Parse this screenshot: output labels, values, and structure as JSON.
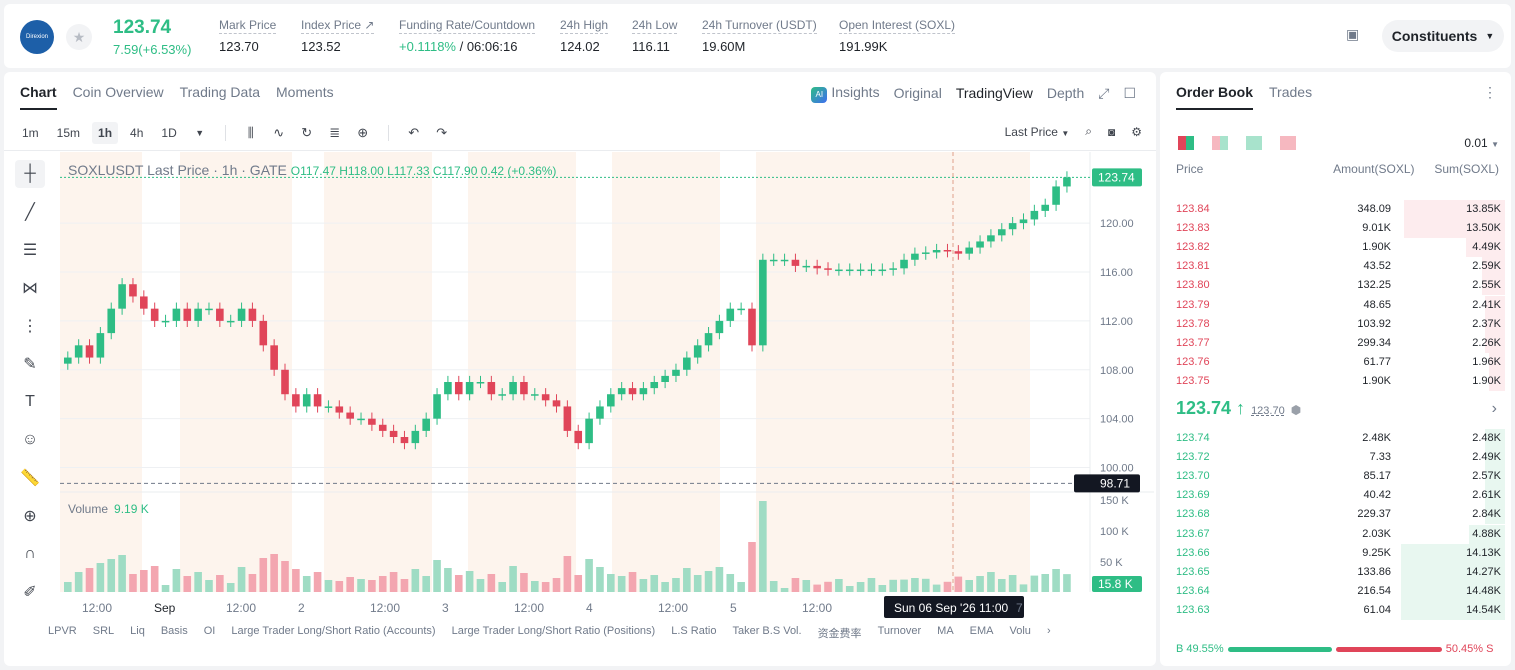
{
  "header": {
    "logo_text": "Direxion",
    "last_price": "123.74",
    "change": "7.59(+6.53%)",
    "stats": [
      {
        "label": "Mark Price",
        "value": "123.70"
      },
      {
        "label": "Index Price ↗",
        "value": "123.52"
      },
      {
        "label": "Funding Rate/Countdown",
        "value_green": "+0.1118%",
        "value": " / 06:06:16"
      },
      {
        "label": "24h High",
        "value": "124.02"
      },
      {
        "label": "24h Low",
        "value": "116.11"
      },
      {
        "label": "24h Turnover (USDT)",
        "value": "19.60M"
      },
      {
        "label": "Open Interest (SOXL)",
        "value": "191.99K"
      }
    ],
    "constituents_label": "Constituents"
  },
  "chart_tabs": [
    "Chart",
    "Coin Overview",
    "Trading Data",
    "Moments"
  ],
  "view_tabs": {
    "insights": "Insights",
    "original": "Original",
    "tradingview": "TradingView",
    "depth": "Depth",
    "ai_badge": "AI"
  },
  "timeframes": [
    "1m",
    "15m",
    "1h",
    "4h",
    "1D"
  ],
  "last_price_select": "Last Price",
  "legend": {
    "symbol": "SOXLUSDT Last Price · 1h · GATE",
    "ohlc": "O117.47  H118.00  L117.33  C117.90  0.42 (+0.36%)"
  },
  "volume_legend": {
    "label": "Volume",
    "value": "9.19 K"
  },
  "indicators": [
    "LPVR",
    "SRL",
    "Liq",
    "Basis",
    "OI",
    "Large Trader Long/Short Ratio (Accounts)",
    "Large Trader Long/Short Ratio (Positions)",
    "L.S Ratio",
    "Taker B.S Vol.",
    "资金费率",
    "Turnover",
    "MA",
    "EMA",
    "Volu"
  ],
  "chart_data": {
    "type": "candlestick",
    "price_axis_ticks": [
      "120.00",
      "116.00",
      "112.00",
      "108.00",
      "104.00",
      "100.00"
    ],
    "volume_axis_ticks": [
      "150 K",
      "100 K",
      "50 K"
    ],
    "time_ticks": [
      "12:00",
      "Sep",
      "12:00",
      "2",
      "12:00",
      "3",
      "12:00",
      "4",
      "12:00",
      "5",
      "12:00",
      "Sun 06 Sep '26   11:00",
      "7"
    ],
    "last_price_label": "123.74",
    "crosshair_price_label": "98.71",
    "volume_label": "15.8 K",
    "price_ylim": [
      98,
      125
    ],
    "closes": [
      109,
      110,
      109,
      111,
      113,
      115,
      114,
      113,
      112,
      112,
      113,
      112,
      113,
      113,
      112,
      112,
      113,
      112,
      110,
      108,
      106,
      105,
      106,
      105,
      105,
      104.5,
      104,
      104,
      103.5,
      103,
      102.5,
      102,
      103,
      104,
      106,
      107,
      106,
      107,
      107,
      106,
      106,
      107,
      106,
      106,
      105.5,
      105,
      103,
      102,
      104,
      105,
      106,
      106.5,
      106,
      106.5,
      107,
      107.5,
      108,
      109,
      110,
      111,
      112,
      113,
      113,
      110,
      117,
      117,
      117,
      116.5,
      116.5,
      116.3,
      116.2,
      116.2,
      116.2,
      116.2,
      116.2,
      116.2,
      116.3,
      117,
      117.5,
      117.6,
      117.8,
      117.7,
      117.5,
      118,
      118.5,
      119,
      119.5,
      120,
      120.3,
      121,
      121.5,
      123,
      123.74
    ]
  },
  "orderbook": {
    "tabs": [
      "Order Book",
      "Trades"
    ],
    "precision": "0.01",
    "columns": [
      "Price",
      "Amount(SOXL)",
      "Sum(SOXL)"
    ],
    "asks": [
      {
        "price": "123.84",
        "amount": "348.09",
        "sum": "13.85K",
        "depth": 0.31
      },
      {
        "price": "123.83",
        "amount": "9.01K",
        "sum": "13.50K",
        "depth": 0.31
      },
      {
        "price": "123.82",
        "amount": "1.90K",
        "sum": "4.49K",
        "depth": 0.12
      },
      {
        "price": "123.81",
        "amount": "43.52",
        "sum": "2.59K",
        "depth": 0.07
      },
      {
        "price": "123.80",
        "amount": "132.25",
        "sum": "2.55K",
        "depth": 0.07
      },
      {
        "price": "123.79",
        "amount": "48.65",
        "sum": "2.41K",
        "depth": 0.06
      },
      {
        "price": "123.78",
        "amount": "103.92",
        "sum": "2.37K",
        "depth": 0.06
      },
      {
        "price": "123.77",
        "amount": "299.34",
        "sum": "2.26K",
        "depth": 0.06
      },
      {
        "price": "123.76",
        "amount": "61.77",
        "sum": "1.96K",
        "depth": 0.05
      },
      {
        "price": "123.75",
        "amount": "1.90K",
        "sum": "1.90K",
        "depth": 0.05
      }
    ],
    "mid_price": "123.74 ↑",
    "index_price": "123.70",
    "bids": [
      {
        "price": "123.74",
        "amount": "2.48K",
        "sum": "2.48K",
        "depth": 0.06
      },
      {
        "price": "123.72",
        "amount": "7.33",
        "sum": "2.49K",
        "depth": 0.06
      },
      {
        "price": "123.70",
        "amount": "85.17",
        "sum": "2.57K",
        "depth": 0.06
      },
      {
        "price": "123.69",
        "amount": "40.42",
        "sum": "2.61K",
        "depth": 0.06
      },
      {
        "price": "123.68",
        "amount": "229.37",
        "sum": "2.84K",
        "depth": 0.06
      },
      {
        "price": "123.67",
        "amount": "2.03K",
        "sum": "4.88K",
        "depth": 0.11
      },
      {
        "price": "123.66",
        "amount": "9.25K",
        "sum": "14.13K",
        "depth": 0.32
      },
      {
        "price": "123.65",
        "amount": "133.86",
        "sum": "14.27K",
        "depth": 0.32
      },
      {
        "price": "123.64",
        "amount": "216.54",
        "sum": "14.48K",
        "depth": 0.32
      },
      {
        "price": "123.63",
        "amount": "61.04",
        "sum": "14.54K",
        "depth": 0.32
      }
    ],
    "buy_pct": "B 49.55%",
    "sell_pct": "50.45% S",
    "buy_ratio": 0.4955
  },
  "colors": {
    "up": "#2ebd85",
    "down": "#e04559"
  }
}
